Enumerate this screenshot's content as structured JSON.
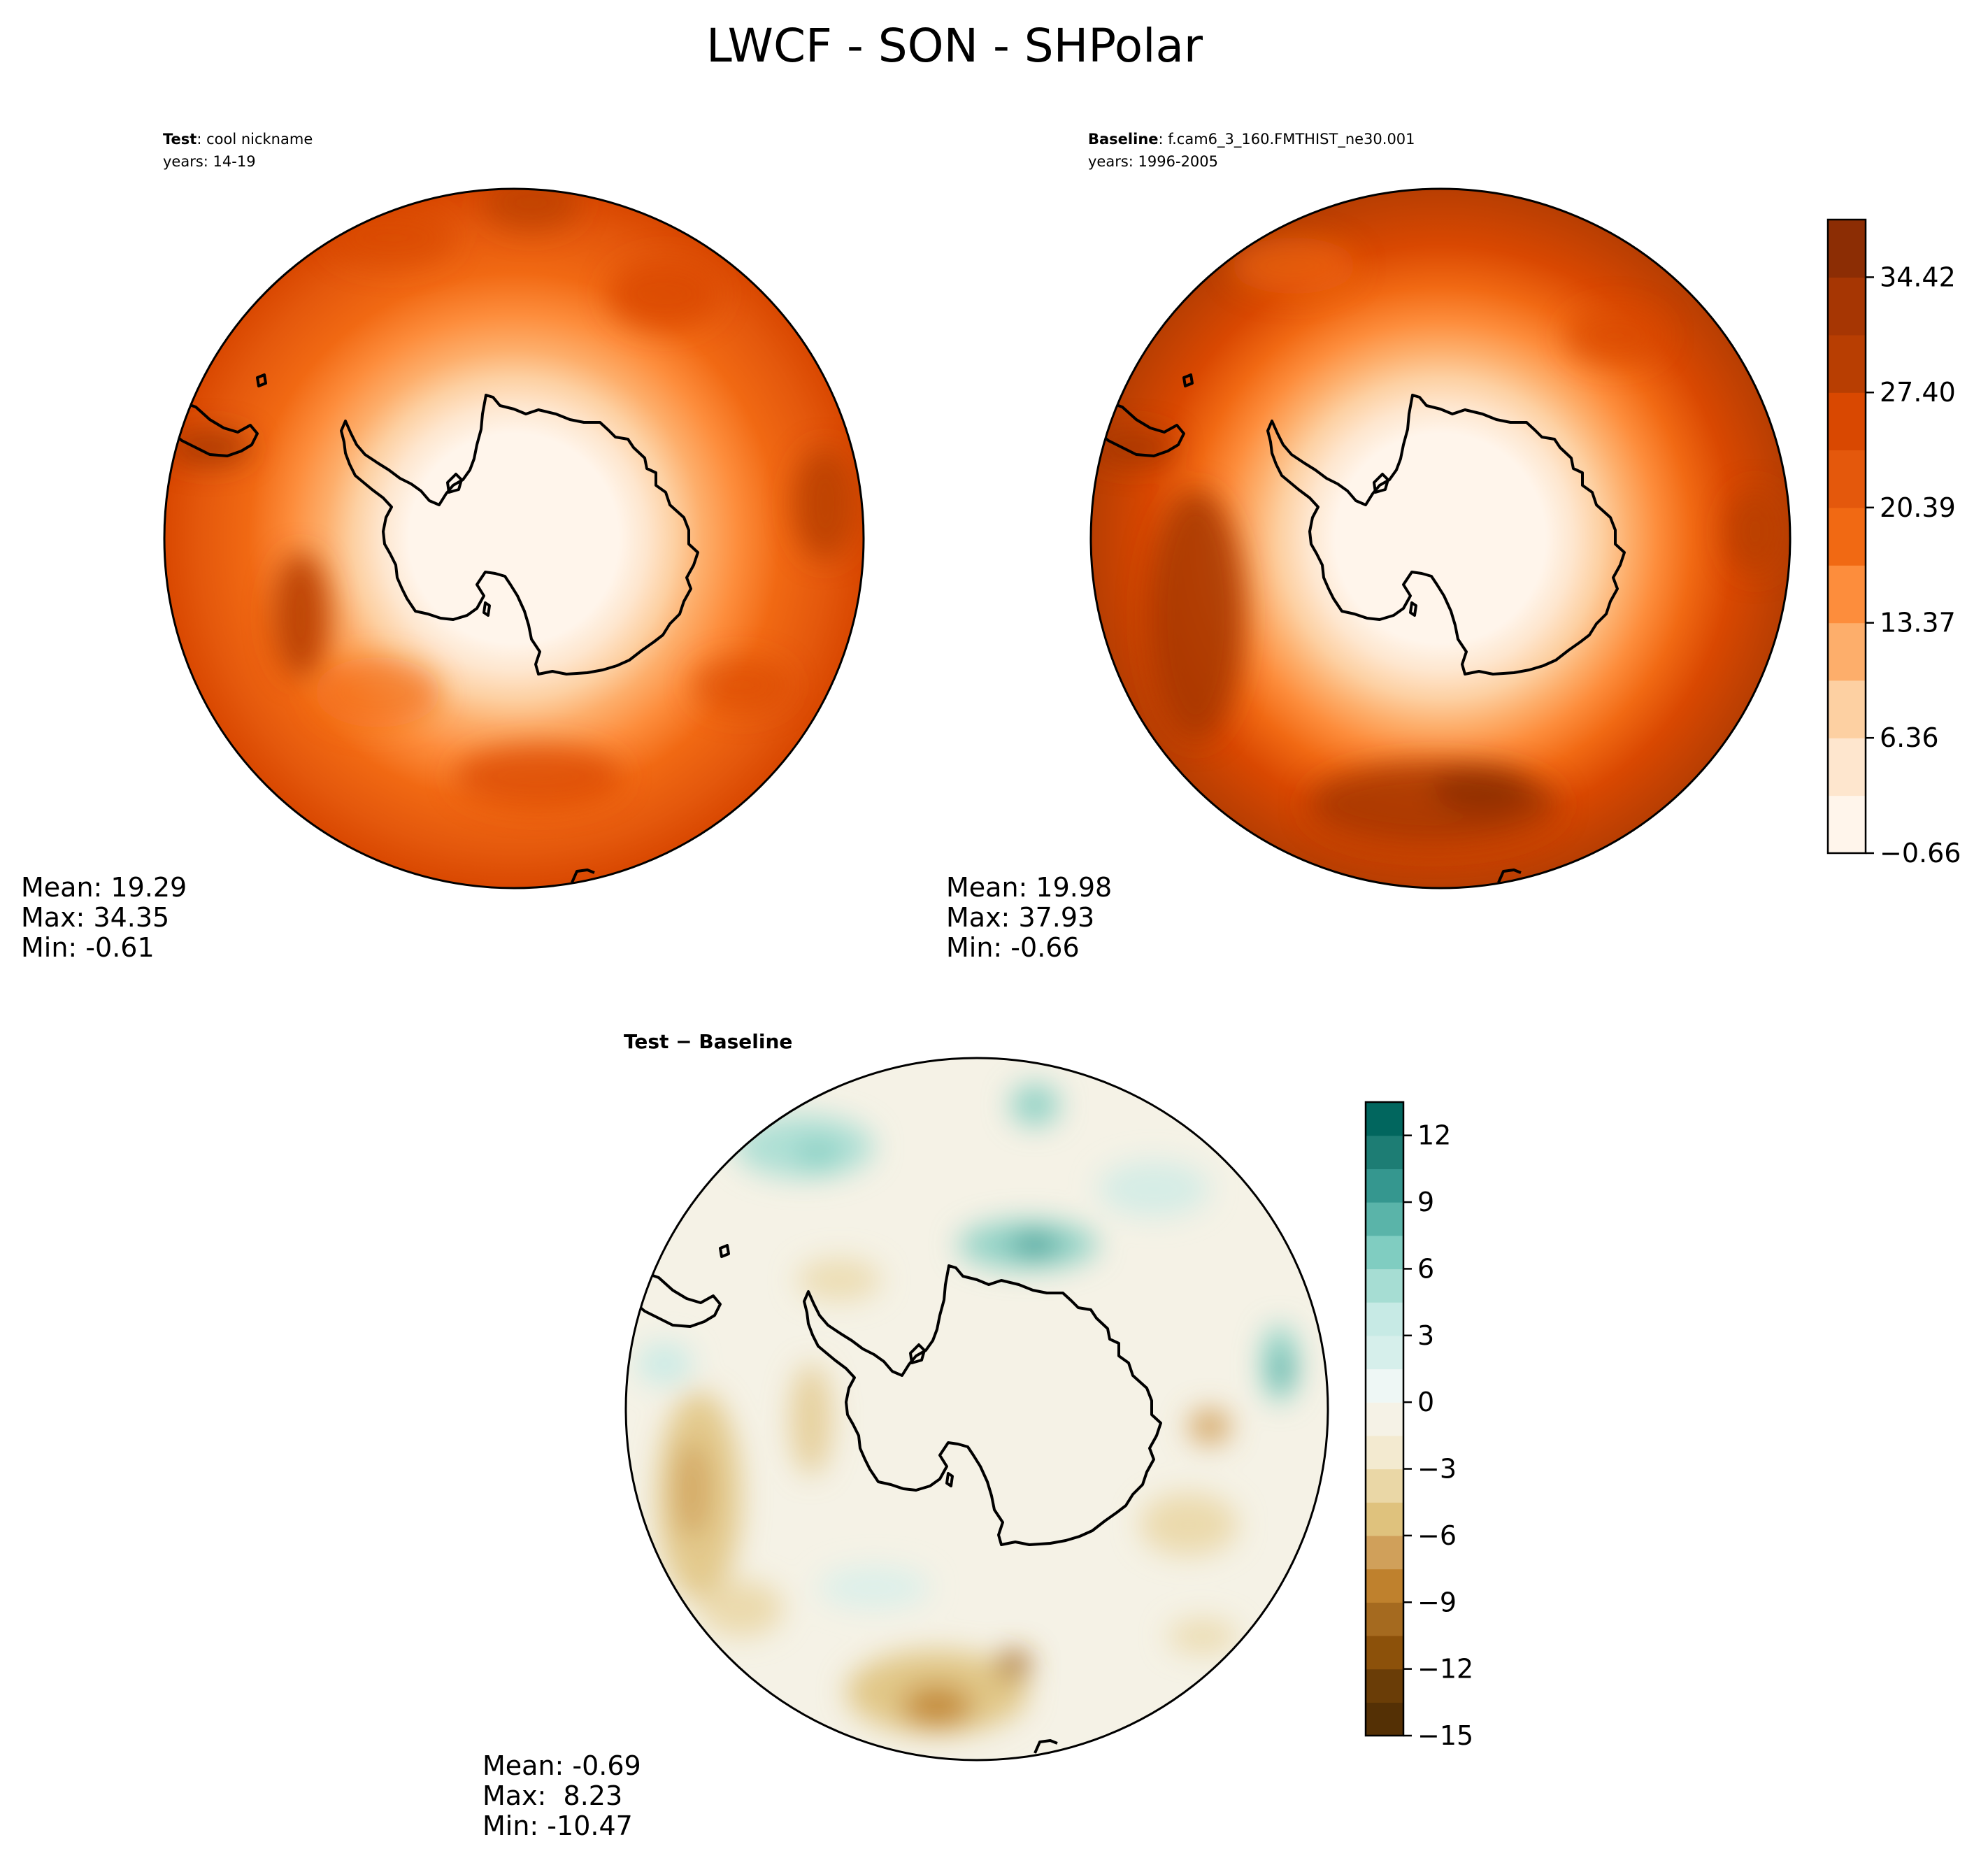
{
  "figure": {
    "title": "LWCF - SON - SHPolar"
  },
  "colors": {
    "orange_scale": [
      "#fff5eb",
      "#fee6ce",
      "#fdd0a2",
      "#fdae6b",
      "#fd8d3c",
      "#f16913",
      "#e4580c",
      "#d94801",
      "#b83e02",
      "#a63603",
      "#8c2d04"
    ],
    "brbg_negative": [
      "#543005",
      "#6a3d07",
      "#8c510a",
      "#a56a1f",
      "#bf812d",
      "#d0a05a",
      "#dfc27d",
      "#ead7a6",
      "#f3ead0",
      "#f5f2e6"
    ],
    "brbg_positive": [
      "#eef7f5",
      "#d6efeb",
      "#c7eae5",
      "#a6ddd3",
      "#80cdc1",
      "#5ab4a9",
      "#35978f",
      "#1d7d74",
      "#01665e",
      "#003c30"
    ]
  },
  "panels": {
    "test": {
      "label_bold": "Test",
      "label_rest": ": cool nickname",
      "years": "years: 14-19",
      "stats": {
        "mean": "Mean: 19.29",
        "max": "Max: 34.35",
        "min": "Min: -0.61"
      }
    },
    "baseline": {
      "label_bold": "Baseline",
      "label_rest": ": f.cam6_3_160.FMTHIST_ne30.001",
      "years": "years: 1996-2005",
      "stats": {
        "mean": "Mean: 19.98",
        "max": "Max: 37.93",
        "min": "Min: -0.66"
      }
    },
    "diff": {
      "title": "Test − Baseline",
      "stats": {
        "mean": "Mean: -0.69",
        "max": "Max:  8.23",
        "min": "Min: -10.47"
      }
    }
  },
  "chart_data": [
    {
      "type": "heatmap",
      "name": "Test",
      "projection": "south-polar-stereographic",
      "levels": [
        -0.66,
        2.85,
        6.36,
        9.87,
        13.37,
        16.88,
        20.39,
        23.9,
        27.4,
        30.91,
        34.42,
        37.93
      ],
      "colorbar_ticks": [
        "−0.66",
        "6.36",
        "13.37",
        "20.39",
        "27.40",
        "34.42"
      ],
      "colorbar_tick_values": [
        -0.66,
        6.36,
        13.37,
        20.39,
        27.4,
        34.42
      ],
      "mean": 19.29,
      "max": 34.35,
      "min": -0.61,
      "field_by_latitude": [
        {
          "lat": -90,
          "value": 0.5
        },
        {
          "lat": -80,
          "value": 1.5
        },
        {
          "lat": -72,
          "value": 6
        },
        {
          "lat": -68,
          "value": 12
        },
        {
          "lat": -64,
          "value": 17
        },
        {
          "lat": -60,
          "value": 21
        },
        {
          "lat": -55,
          "value": 24
        },
        {
          "lat": -50,
          "value": 27
        },
        {
          "lat": -45,
          "value": 26
        }
      ]
    },
    {
      "type": "heatmap",
      "name": "Baseline",
      "projection": "south-polar-stereographic",
      "levels": [
        -0.66,
        2.85,
        6.36,
        9.87,
        13.37,
        16.88,
        20.39,
        23.9,
        27.4,
        30.91,
        34.42,
        37.93
      ],
      "colorbar_ticks": [
        "−0.66",
        "6.36",
        "13.37",
        "20.39",
        "27.40",
        "34.42"
      ],
      "colorbar_tick_values": [
        -0.66,
        6.36,
        13.37,
        20.39,
        27.4,
        34.42
      ],
      "mean": 19.98,
      "max": 37.93,
      "min": -0.66,
      "field_by_latitude": [
        {
          "lat": -90,
          "value": 0.5
        },
        {
          "lat": -80,
          "value": 1.5
        },
        {
          "lat": -72,
          "value": 6
        },
        {
          "lat": -68,
          "value": 12
        },
        {
          "lat": -64,
          "value": 18
        },
        {
          "lat": -60,
          "value": 23
        },
        {
          "lat": -55,
          "value": 27
        },
        {
          "lat": -50,
          "value": 30
        },
        {
          "lat": -45,
          "value": 29
        }
      ]
    },
    {
      "type": "heatmap",
      "name": "Test − Baseline",
      "projection": "south-polar-stereographic",
      "levels": [
        -15,
        -13.5,
        -12,
        -10.5,
        -9,
        -7.5,
        -6,
        -4.5,
        -3,
        -1.5,
        0,
        1.5,
        3,
        4.5,
        6,
        7.5,
        9,
        10.5,
        12,
        13.5
      ],
      "colorbar_ticks": [
        "−15",
        "−12",
        "−9",
        "−6",
        "−3",
        "0",
        "3",
        "6",
        "9",
        "12"
      ],
      "colorbar_tick_values": [
        -15,
        -12,
        -9,
        -6,
        -3,
        0,
        3,
        6,
        9,
        12
      ],
      "mean": -0.69,
      "max": 8.23,
      "min": -10.47
    }
  ]
}
